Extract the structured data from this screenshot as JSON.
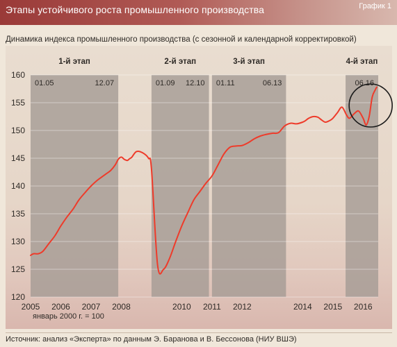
{
  "header": {
    "title": "Этапы устойчивого роста промышленного производства",
    "chart_number": "График 1"
  },
  "subtitle": "Динамика индекса промышленного производства (с сезонной и календарной корректировкой)",
  "base_note": "январь 2000 г. = 100",
  "source": "Источник: анализ «Эксперта» по данным Э. Баранова и В. Бессонова (НИУ ВШЭ)",
  "colors": {
    "header": "#a5423f",
    "line": "#ee3b2a",
    "phase_band": "#a39a93",
    "circle": "#1a1a1a"
  },
  "chart_data": {
    "type": "line",
    "title": "",
    "xlabel": "",
    "ylabel": "",
    "xlim": [
      2005.0,
      2016.5
    ],
    "ylim": [
      120,
      160
    ],
    "yticks": [
      120,
      125,
      130,
      135,
      140,
      145,
      150,
      155,
      160
    ],
    "xticks": [
      2005,
      2006,
      2007,
      2008,
      2010,
      2011,
      2012,
      2014,
      2015,
      2016
    ],
    "grid": "horizontal",
    "phases": [
      {
        "label": "1-й этап",
        "start": 2005.0,
        "end": 2007.9,
        "start_label": "01.05",
        "end_label": "12.07"
      },
      {
        "label": "2-й этап",
        "start": 2009.0,
        "end": 2010.9,
        "start_label": "01.09",
        "end_label": "12.10"
      },
      {
        "label": "3-й этап",
        "start": 2011.0,
        "end": 2013.45,
        "start_label": "01.11",
        "end_label": "06.13"
      },
      {
        "label": "4-й этап",
        "start": 2015.42,
        "end": 2016.5,
        "start_label": "",
        "end_label": "06.16"
      }
    ],
    "highlight_circle": {
      "x": 2016.25,
      "y": 154.5
    },
    "series": [
      {
        "x": [
          2005.0,
          2005.1,
          2005.25,
          2005.4,
          2005.6,
          2005.8,
          2006.0,
          2006.2,
          2006.4,
          2006.6,
          2006.8,
          2007.0,
          2007.2,
          2007.35,
          2007.5,
          2007.65,
          2007.8,
          2007.9,
          2008.0,
          2008.1,
          2008.2,
          2008.25,
          2008.3,
          2008.35,
          2008.5,
          2008.7,
          2008.9,
          2009.0,
          2009.2,
          2009.4,
          2009.6,
          2009.8,
          2010.0,
          2010.2,
          2010.4,
          2010.6,
          2010.8,
          2011.0,
          2011.2,
          2011.4,
          2011.6,
          2011.8,
          2012.0,
          2012.2,
          2012.4,
          2012.6,
          2012.8,
          2013.0,
          2013.2,
          2013.4,
          2013.6,
          2013.8,
          2014.0,
          2014.1,
          2014.2,
          2014.35,
          2014.5,
          2014.6,
          2014.75,
          2014.9,
          2015.0,
          2015.15,
          2015.3,
          2015.45,
          2015.55,
          2015.7,
          2015.85,
          2016.0,
          2016.1,
          2016.2,
          2016.3,
          2016.4,
          2016.45
        ],
        "values": [
          127.5,
          127.8,
          127.8,
          128.2,
          129.6,
          131.0,
          132.8,
          134.4,
          135.8,
          137.5,
          138.8,
          140.0,
          141.0,
          141.6,
          142.2,
          142.8,
          143.8,
          144.8,
          145.2,
          144.8,
          144.6,
          144.8,
          145.0,
          145.2,
          146.2,
          146.0,
          145.0,
          143.0,
          125.8,
          125.0,
          127.0,
          130.0,
          132.8,
          135.2,
          137.5,
          139.0,
          140.5,
          141.8,
          143.8,
          145.8,
          147.0,
          147.2,
          147.3,
          147.8,
          148.5,
          149.0,
          149.3,
          149.5,
          149.6,
          150.8,
          151.3,
          151.2,
          151.5,
          151.8,
          152.2,
          152.5,
          152.4,
          152.0,
          151.5,
          151.8,
          152.2,
          153.2,
          154.2,
          152.8,
          152.2,
          153.0,
          153.5,
          152.2,
          151.0,
          152.5,
          156.0,
          157.3,
          157.8
        ]
      }
    ]
  }
}
